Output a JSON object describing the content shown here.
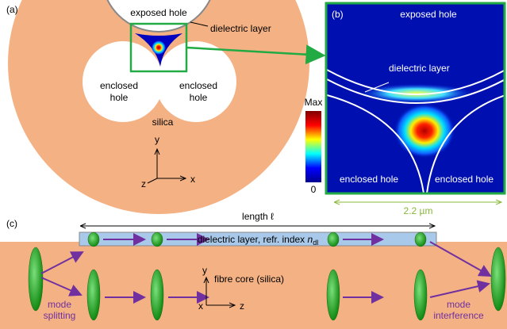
{
  "panel_a": {
    "label": "(a)",
    "exposed_hole": "exposed hole",
    "dielectric_layer": "dielectric layer",
    "enclosed_left": [
      "enclosed",
      "hole"
    ],
    "enclosed_right": [
      "enclosed",
      "hole"
    ],
    "silica": "silica",
    "axis_y": "y",
    "axis_x": "x",
    "axis_z": "z",
    "colorbar_max": "Max",
    "colorbar_min": "0"
  },
  "panel_b": {
    "label": "(b)",
    "exposed_hole": "exposed hole",
    "dielectric_layer": "dielectric layer",
    "enclosed_left": "enclosed hole",
    "enclosed_right": "enclosed hole",
    "scale": "2.2 µm"
  },
  "panel_c": {
    "label": "(c)",
    "length": "length ℓ",
    "layer_text": "dielectric layer, refr. index ",
    "layer_symbol": "n",
    "layer_sub": "dl",
    "core": "fibre core (silica)",
    "axis_y": "y",
    "axis_x": "x",
    "axis_z": "z",
    "mode_splitting": [
      "mode",
      "splitting"
    ],
    "mode_interference": [
      "mode",
      "interference"
    ]
  }
}
